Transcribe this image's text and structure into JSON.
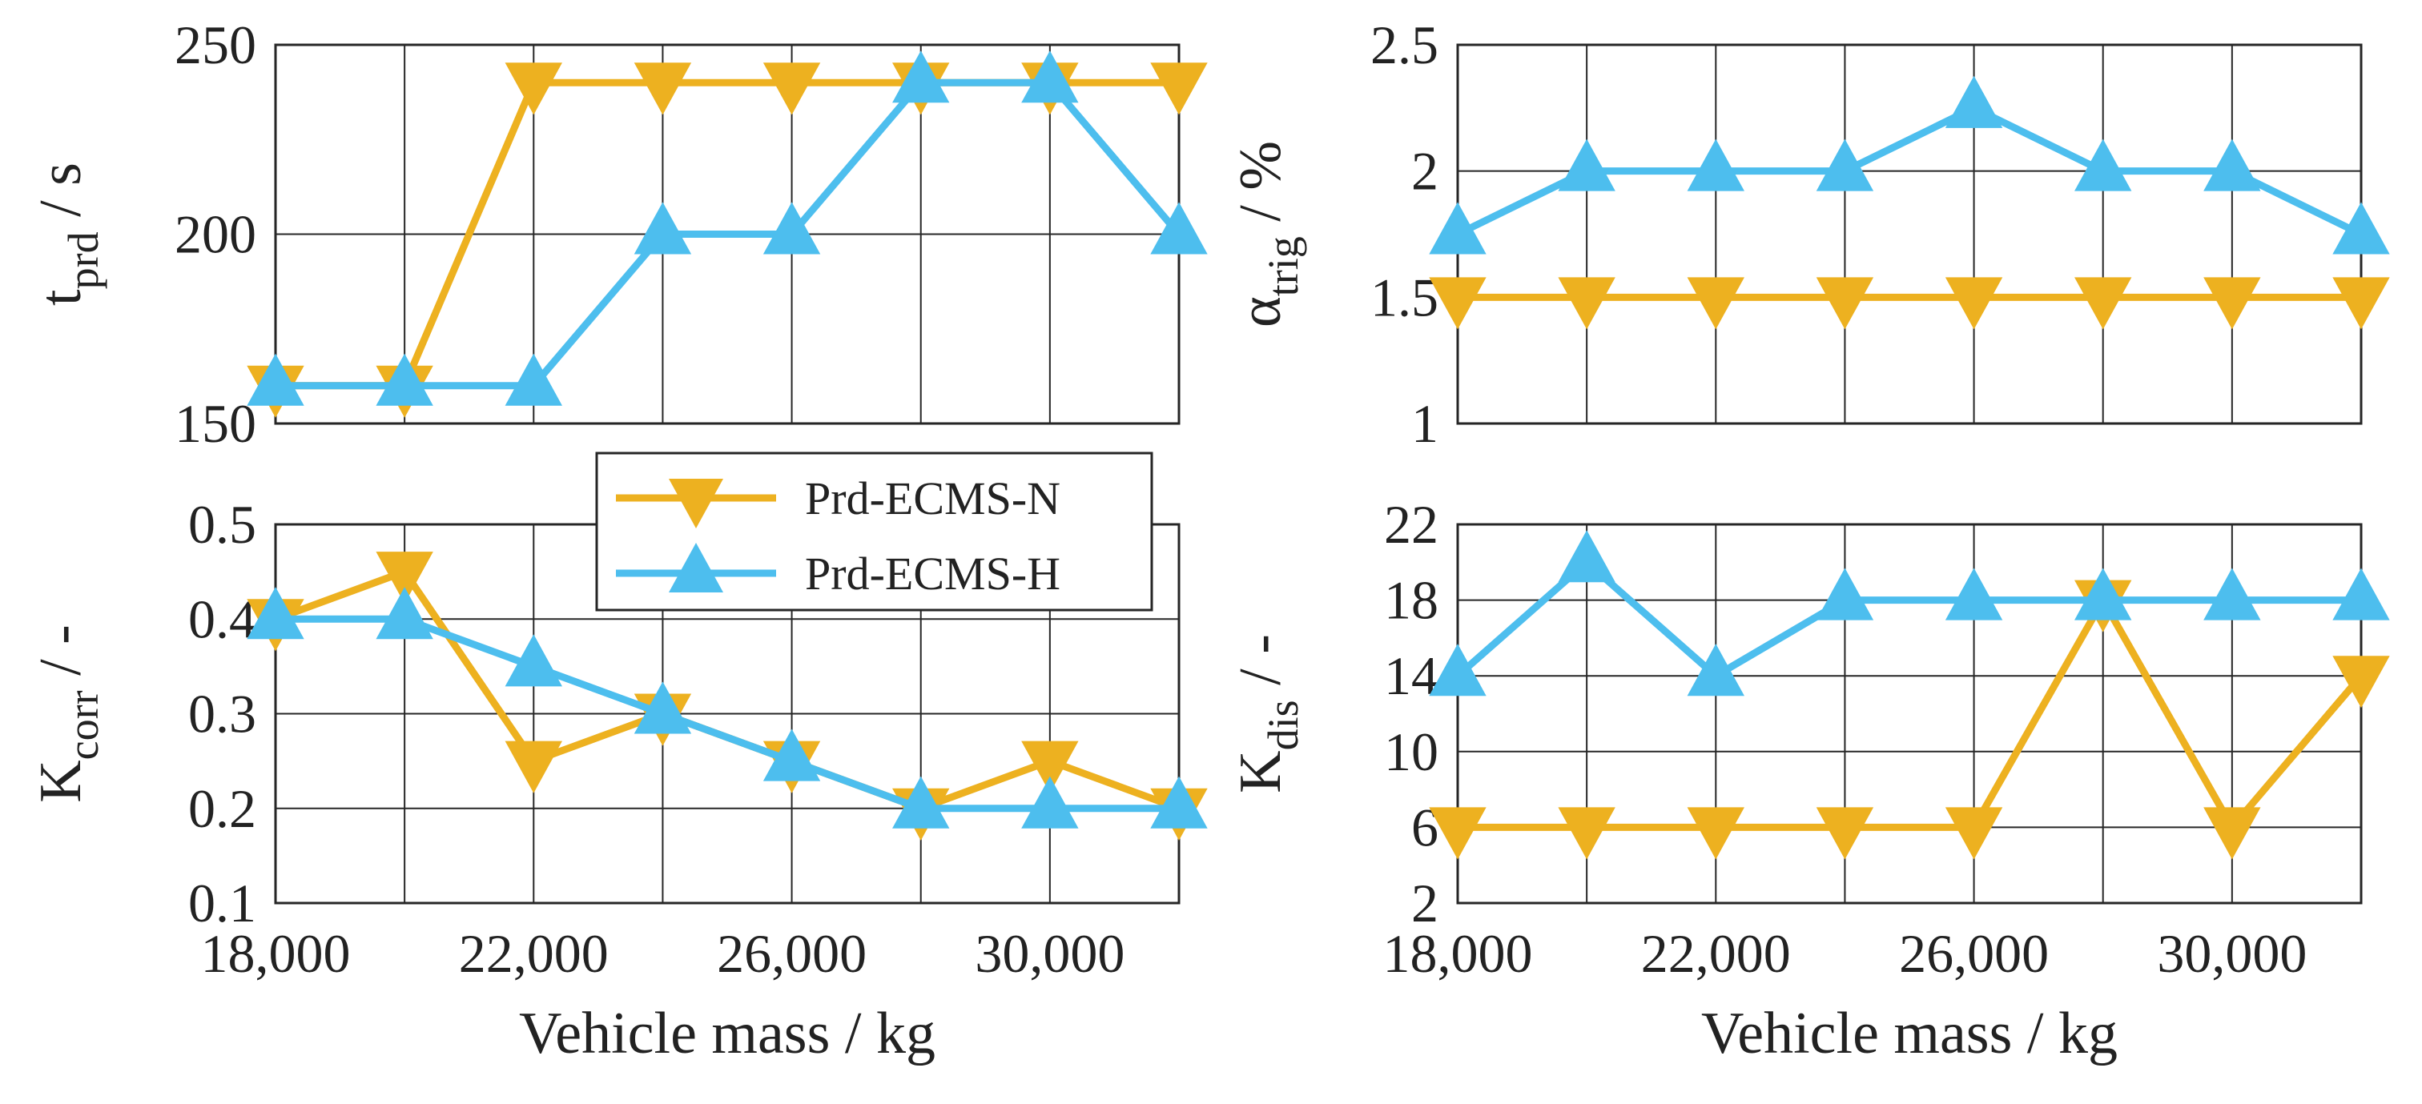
{
  "colors": {
    "series_n": "#EDB120",
    "series_h": "#4DBEEE",
    "grid": "#262626",
    "axis": "#262626"
  },
  "legend": {
    "entries": [
      {
        "label": "Prd-ECMS-N",
        "marker": "triangle-down",
        "color_key": "series_n"
      },
      {
        "label": "Prd-ECMS-H",
        "marker": "triangle-up",
        "color_key": "series_h"
      }
    ]
  },
  "chart_data": [
    {
      "id": "tprd",
      "type": "line",
      "ylabel_main": "t",
      "ylabel_sub": "prd",
      "ylabel_unit": " / s",
      "xlabel": "",
      "x": [
        18000,
        20000,
        22000,
        24000,
        26000,
        28000,
        30000,
        32000
      ],
      "xlim": [
        18000,
        32000
      ],
      "xticks": [
        18000,
        22000,
        26000,
        30000
      ],
      "xticklabels": [],
      "xgrid": [
        18000,
        20000,
        22000,
        24000,
        26000,
        28000,
        30000,
        32000
      ],
      "ylim": [
        150,
        250
      ],
      "yticks": [
        150,
        200,
        250
      ],
      "yticklabels": [
        "150",
        "200",
        "250"
      ],
      "ygrid": [
        150,
        200,
        250
      ],
      "series": [
        {
          "name": "Prd-ECMS-N",
          "values": [
            160,
            160,
            240,
            240,
            240,
            240,
            240,
            240
          ]
        },
        {
          "name": "Prd-ECMS-H",
          "values": [
            160,
            160,
            160,
            200,
            200,
            240,
            240,
            200
          ]
        }
      ]
    },
    {
      "id": "alpha",
      "type": "line",
      "ylabel_main": "α",
      "ylabel_sub": "trig",
      "ylabel_unit": " / %",
      "xlabel": "",
      "x": [
        18000,
        20000,
        22000,
        24000,
        26000,
        28000,
        30000,
        32000
      ],
      "xlim": [
        18000,
        32000
      ],
      "xticks": [
        18000,
        22000,
        26000,
        30000
      ],
      "xticklabels": [],
      "xgrid": [
        18000,
        20000,
        22000,
        24000,
        26000,
        28000,
        30000,
        32000
      ],
      "ylim": [
        1,
        2.5
      ],
      "yticks": [
        1,
        1.5,
        2,
        2.5
      ],
      "yticklabels": [
        "1",
        "1.5",
        "2",
        "2.5"
      ],
      "ygrid": [
        1,
        1.5,
        2,
        2.5
      ],
      "series": [
        {
          "name": "Prd-ECMS-N",
          "values": [
            1.5,
            1.5,
            1.5,
            1.5,
            1.5,
            1.5,
            1.5,
            1.5
          ]
        },
        {
          "name": "Prd-ECMS-H",
          "values": [
            1.75,
            2,
            2,
            2,
            2.25,
            2,
            2,
            1.75
          ]
        }
      ]
    },
    {
      "id": "kcorr",
      "type": "line",
      "ylabel_main": "K",
      "ylabel_sub": "corr",
      "ylabel_unit": " / -",
      "xlabel": "Vehicle mass / kg",
      "x": [
        18000,
        20000,
        22000,
        24000,
        26000,
        28000,
        30000,
        32000
      ],
      "xlim": [
        18000,
        32000
      ],
      "xticks": [
        18000,
        22000,
        26000,
        30000
      ],
      "xticklabels": [
        "18,000",
        "22,000",
        "26,000",
        "30,000"
      ],
      "xgrid": [
        18000,
        20000,
        22000,
        24000,
        26000,
        28000,
        30000,
        32000
      ],
      "ylim": [
        0.1,
        0.5
      ],
      "yticks": [
        0.1,
        0.2,
        0.3,
        0.4,
        0.5
      ],
      "yticklabels": [
        "0.1",
        "0.2",
        "0.3",
        "0.4",
        "0.5"
      ],
      "ygrid": [
        0.1,
        0.2,
        0.3,
        0.4,
        0.5
      ],
      "series": [
        {
          "name": "Prd-ECMS-N",
          "values": [
            0.4,
            0.45,
            0.25,
            0.3,
            0.25,
            0.2,
            0.25,
            0.2
          ]
        },
        {
          "name": "Prd-ECMS-H",
          "values": [
            0.4,
            0.4,
            0.35,
            0.3,
            0.25,
            0.2,
            0.2,
            0.2
          ]
        }
      ]
    },
    {
      "id": "kdis",
      "type": "line",
      "ylabel_main": "K",
      "ylabel_sub": "dis",
      "ylabel_unit": " / -",
      "xlabel": "Vehicle mass / kg",
      "x": [
        18000,
        20000,
        22000,
        24000,
        26000,
        28000,
        30000,
        32000
      ],
      "xlim": [
        18000,
        32000
      ],
      "xticks": [
        18000,
        22000,
        26000,
        30000
      ],
      "xticklabels": [
        "18,000",
        "22,000",
        "26,000",
        "30,000"
      ],
      "xgrid": [
        18000,
        20000,
        22000,
        24000,
        26000,
        28000,
        30000,
        32000
      ],
      "ylim": [
        2,
        22
      ],
      "yticks": [
        2,
        6,
        10,
        14,
        18,
        22
      ],
      "yticklabels": [
        "2",
        "6",
        "10",
        "14",
        "18",
        "22"
      ],
      "ygrid": [
        2,
        6,
        10,
        14,
        18,
        22
      ],
      "series": [
        {
          "name": "Prd-ECMS-N",
          "values": [
            6,
            6,
            6,
            6,
            6,
            18,
            6,
            14
          ]
        },
        {
          "name": "Prd-ECMS-H",
          "values": [
            14,
            20,
            14,
            18,
            18,
            18,
            18,
            18
          ]
        }
      ]
    }
  ]
}
